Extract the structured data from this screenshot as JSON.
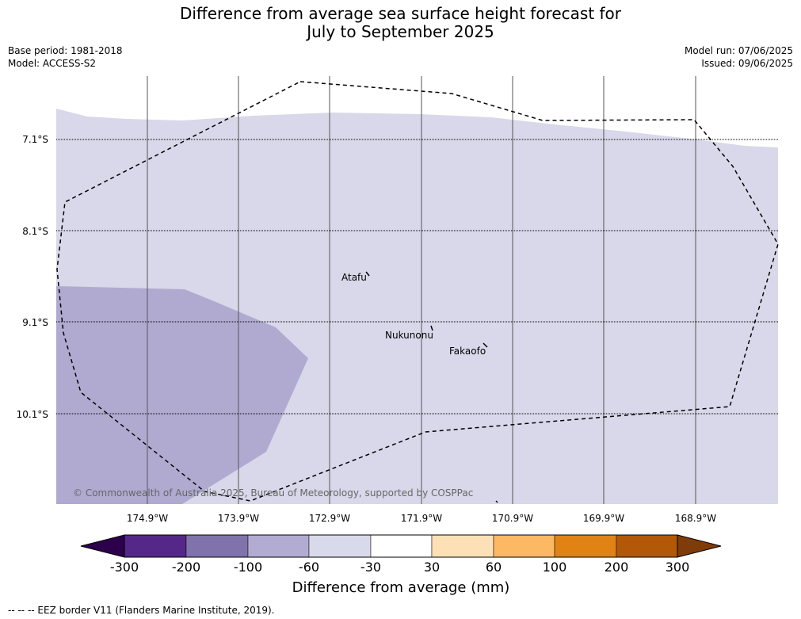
{
  "title_line1": "Difference from average sea surface height forecast for",
  "title_line2": "July to September 2025",
  "meta": {
    "base_period": "Base period: 1981-2018",
    "model": "Model: ACCESS-S2",
    "model_run": "Model run: 07/06/2025",
    "issued": "Issued: 09/06/2025"
  },
  "map": {
    "lat_labels": [
      "7.1°S",
      "8.1°S",
      "9.1°S",
      "10.1°S"
    ],
    "lon_labels": [
      "174.9°W",
      "173.9°W",
      "172.9°W",
      "171.9°W",
      "170.9°W",
      "169.9°W",
      "168.9°W"
    ],
    "places": {
      "atafu": "Atafu",
      "nukunonu": "Nukunonu",
      "fakaofo": "Fakaofo"
    },
    "copyright": "© Commonwealth of Australia 2025, Bureau of Meteorology, supported by COSPPac",
    "colors": {
      "field_light": "#d8d8ea",
      "field_mid": "#b0aad1",
      "land": "#000000"
    }
  },
  "colorbar": {
    "ticks": [
      "-300",
      "-200",
      "-100",
      "-60",
      "-30",
      "30",
      "60",
      "100",
      "200",
      "300"
    ],
    "colors": [
      "#2d004b",
      "#542788",
      "#8073ac",
      "#b2abd2",
      "#d8daeb",
      "#ffffff",
      "#fee0b6",
      "#fdb863",
      "#e08214",
      "#b35806",
      "#7f3b08"
    ],
    "title": "Difference from average (mm)"
  },
  "footer": "-- -- -- EEZ border V11 (Flanders Marine Institute, 2019)."
}
